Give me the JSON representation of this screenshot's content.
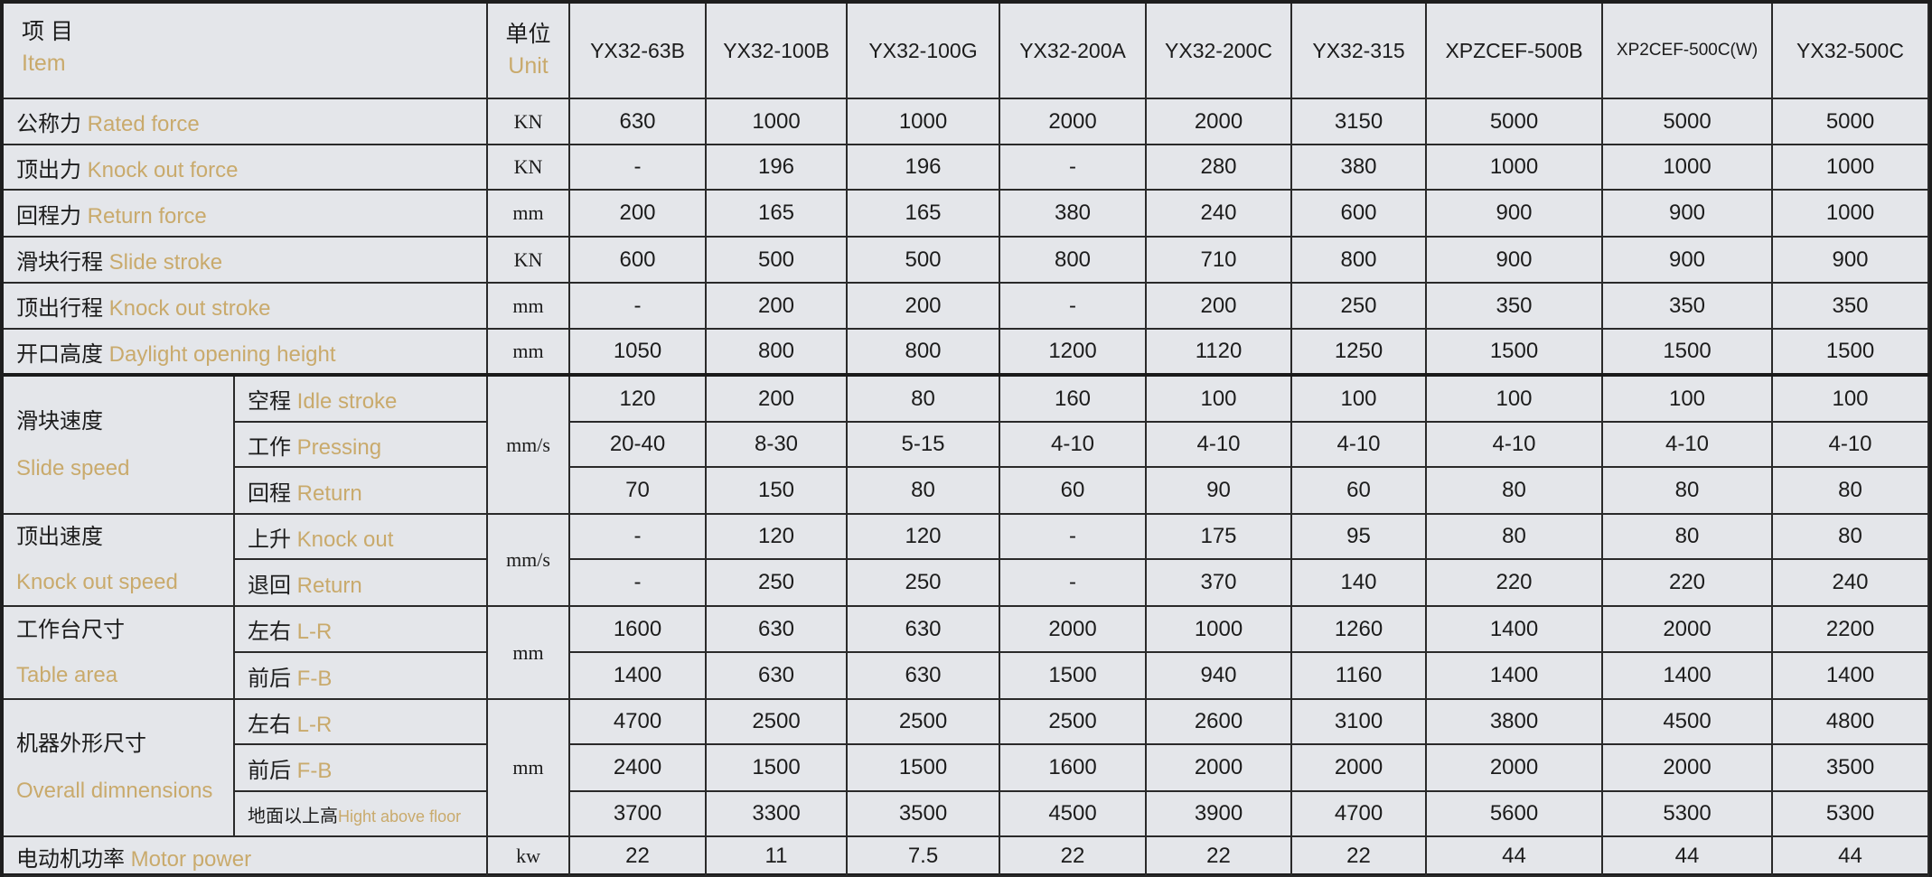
{
  "header": {
    "item_cn": "项 目",
    "item_en": "Item",
    "unit_cn": "单位",
    "unit_en": "Unit",
    "models": [
      "YX32-63B",
      "YX32-100B",
      "YX32-100G",
      "YX32-200A",
      "YX32-200C",
      "YX32-315",
      "XPZCEF-500B",
      "XP2CEF-500C(W)",
      "YX32-500C"
    ]
  },
  "rows": [
    {
      "cn": "公称力",
      "en": "Rated force",
      "unit": "KN",
      "values": [
        "630",
        "1000",
        "1000",
        "2000",
        "2000",
        "3150",
        "5000",
        "5000",
        "5000"
      ]
    },
    {
      "cn": "顶出力",
      "en": "Knock out force",
      "unit": "KN",
      "values": [
        "-",
        "196",
        "196",
        "-",
        "280",
        "380",
        "1000",
        "1000",
        "1000"
      ]
    },
    {
      "cn": "回程力",
      "en": "Return force",
      "unit": "mm",
      "values": [
        "200",
        "165",
        "165",
        "380",
        "240",
        "600",
        "900",
        "900",
        "1000"
      ]
    },
    {
      "cn": "滑块行程",
      "en": "Slide stroke",
      "unit": "KN",
      "values": [
        "600",
        "500",
        "500",
        "800",
        "710",
        "800",
        "900",
        "900",
        "900"
      ]
    },
    {
      "cn": "顶出行程",
      "en": "Knock out stroke",
      "unit": "mm",
      "values": [
        "-",
        "200",
        "200",
        "-",
        "200",
        "250",
        "350",
        "350",
        "350"
      ]
    },
    {
      "cn": "开口高度",
      "en": "Daylight opening height",
      "unit": "mm",
      "values": [
        "1050",
        "800",
        "800",
        "1200",
        "1120",
        "1250",
        "1500",
        "1500",
        "1500"
      ]
    },
    {
      "cn": "滑块速度",
      "en": "Slide speed",
      "unit": "mm/s",
      "subs": [
        {
          "cn": "空程",
          "en": "Idle stroke",
          "values": [
            "120",
            "200",
            "80",
            "160",
            "100",
            "100",
            "100",
            "100",
            "100"
          ]
        },
        {
          "cn": "工作",
          "en": "Pressing",
          "values": [
            "20-40",
            "8-30",
            "5-15",
            "4-10",
            "4-10",
            "4-10",
            "4-10",
            "4-10",
            "4-10"
          ]
        },
        {
          "cn": "回程",
          "en": "Return",
          "values": [
            "70",
            "150",
            "80",
            "60",
            "90",
            "60",
            "80",
            "80",
            "80"
          ]
        }
      ]
    },
    {
      "cn": "顶出速度",
      "en": "Knock out speed",
      "unit": "mm/s",
      "subs": [
        {
          "cn": "上升",
          "en": "Knock out",
          "values": [
            "-",
            "120",
            "120",
            "-",
            "175",
            "95",
            "80",
            "80",
            "80"
          ]
        },
        {
          "cn": "退回",
          "en": "Return",
          "values": [
            "-",
            "250",
            "250",
            "-",
            "370",
            "140",
            "220",
            "220",
            "240"
          ]
        }
      ]
    },
    {
      "cn": "工作台尺寸",
      "en": "Table area",
      "unit": "mm",
      "subs": [
        {
          "cn": "左右",
          "en": "L-R",
          "values": [
            "1600",
            "630",
            "630",
            "2000",
            "1000",
            "1260",
            "1400",
            "2000",
            "2200"
          ]
        },
        {
          "cn": "前后",
          "en": "F-B",
          "values": [
            "1400",
            "630",
            "630",
            "1500",
            "940",
            "1160",
            "1400",
            "1400",
            "1400"
          ]
        }
      ]
    },
    {
      "cn": "机器外形尺寸",
      "en": "Overall dimnensions",
      "unit": "mm",
      "subs": [
        {
          "cn": "左右",
          "en": "L-R",
          "values": [
            "4700",
            "2500",
            "2500",
            "2500",
            "2600",
            "3100",
            "3800",
            "4500",
            "4800"
          ]
        },
        {
          "cn": "前后",
          "en": "F-B",
          "values": [
            "2400",
            "1500",
            "1500",
            "1600",
            "2000",
            "2000",
            "2000",
            "2000",
            "3500"
          ]
        },
        {
          "cn": "地面以上高",
          "en": "Hight above floor",
          "values": [
            "3700",
            "3300",
            "3500",
            "4500",
            "3900",
            "4700",
            "5600",
            "5300",
            "5300"
          ]
        }
      ]
    },
    {
      "cn": "电动机功率",
      "en": "Motor power",
      "unit": "kw",
      "values": [
        "22",
        "11",
        "7.5",
        "22",
        "22",
        "22",
        "44",
        "44",
        "44"
      ]
    }
  ],
  "colors": {
    "background": "#e4e6ea",
    "english_text": "#c9aa6c",
    "chinese_text": "#1c1c1c",
    "border": "#2a2a2a"
  }
}
